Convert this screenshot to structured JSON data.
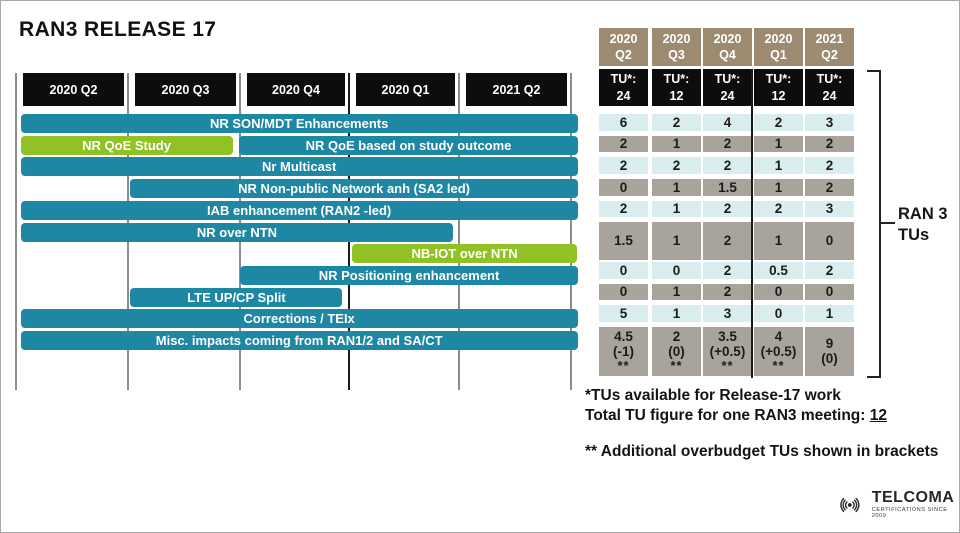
{
  "title": "RAN3 RELEASE 17",
  "colors": {
    "teal": "#1e87a3",
    "green": "#90c226",
    "header_black": "#0d0d0d",
    "tan": "#9c8b71",
    "row_light": "#d9edee",
    "row_gray": "#a8a49b",
    "grid_gray": "#8c8c8c",
    "divider_black": "#1a1a1a"
  },
  "gantt": {
    "quarters": [
      "2020 Q2",
      "2020 Q3",
      "2020 Q4",
      "2020 Q1",
      "2021 Q2"
    ],
    "bars": [
      {
        "lane": 0,
        "start": 0.05,
        "end": 5.07,
        "color": "teal",
        "label": "NR SON/MDT Enhancements"
      },
      {
        "lane": 1,
        "start": 0.05,
        "end": 1.96,
        "color": "green",
        "label": "NR QoE Study"
      },
      {
        "lane": 1,
        "start": 2.02,
        "end": 5.07,
        "color": "teal",
        "label": "NR QoE based on study outcome"
      },
      {
        "lane": 2,
        "start": 0.05,
        "end": 5.07,
        "color": "teal",
        "label": "Nr Multicast"
      },
      {
        "lane": 3,
        "start": 1.04,
        "end": 5.07,
        "color": "teal",
        "label": "NR Non-public Network anh (SA2 led)"
      },
      {
        "lane": 4,
        "start": 0.05,
        "end": 5.07,
        "color": "teal",
        "label": "IAB enhancement (RAN2 -led)"
      },
      {
        "lane": 5,
        "start": 0.05,
        "end": 3.95,
        "color": "teal",
        "label": "NR over NTN"
      },
      {
        "lane": 6,
        "start": 3.04,
        "end": 5.06,
        "color": "green",
        "label": "NB-IOT over NTN"
      },
      {
        "lane": 7,
        "start": 2.03,
        "end": 5.07,
        "color": "teal",
        "label": "NR Positioning enhancement"
      },
      {
        "lane": 8,
        "start": 1.04,
        "end": 2.95,
        "color": "teal",
        "label": "LTE UP/CP Split"
      },
      {
        "lane": 9,
        "start": 0.05,
        "end": 5.07,
        "color": "teal",
        "label": "Corrections / TEIx"
      },
      {
        "lane": 10,
        "start": 0.05,
        "end": 5.07,
        "color": "teal",
        "label": "Misc. impacts coming from RAN1/2 and SA/CT"
      }
    ]
  },
  "table": {
    "quarters": [
      "2020 Q2",
      "2020 Q3",
      "2020 Q4",
      "2020 Q1",
      "2021 Q2"
    ],
    "tu_label": "TU*:",
    "tu_values": [
      "24",
      "12",
      "24",
      "12",
      "24"
    ],
    "rows": [
      {
        "shade": "light",
        "size": "normal",
        "cells": [
          "6",
          "2",
          "4",
          "2",
          "3"
        ]
      },
      {
        "shade": "gray",
        "size": "normal",
        "cells": [
          "2",
          "1",
          "2",
          "1",
          "2"
        ]
      },
      {
        "shade": "light",
        "size": "normal",
        "cells": [
          "2",
          "2",
          "2",
          "1",
          "2"
        ]
      },
      {
        "shade": "gray",
        "size": "normal",
        "cells": [
          "0",
          "1",
          "1.5",
          "1",
          "2"
        ]
      },
      {
        "shade": "light",
        "size": "normal",
        "cells": [
          "2",
          "1",
          "2",
          "2",
          "3"
        ]
      },
      {
        "shade": "gray",
        "size": "double",
        "cells": [
          "1.5",
          "1",
          "2",
          "1",
          "0"
        ]
      },
      {
        "shade": "light",
        "size": "normal",
        "cells": [
          "0",
          "0",
          "2",
          "0.5",
          "2"
        ]
      },
      {
        "shade": "gray",
        "size": "normal",
        "cells": [
          "0",
          "1",
          "2",
          "0",
          "0"
        ]
      },
      {
        "shade": "light",
        "size": "normal",
        "cells": [
          "5",
          "1",
          "3",
          "0",
          "1"
        ]
      },
      {
        "shade": "gray",
        "size": "triple",
        "cells": [
          [
            "4.5",
            "(-1)",
            "**"
          ],
          [
            "2",
            "(0)",
            "**"
          ],
          [
            "3.5",
            "(+0.5)",
            "**"
          ],
          [
            "4",
            "(+0.5)",
            "**"
          ],
          [
            "9",
            "(0)"
          ]
        ]
      }
    ]
  },
  "bracket": {
    "label_line1": "RAN 3",
    "label_line2": "TUs"
  },
  "footnotes": {
    "line1": "*TUs available for Release-17 work",
    "line2_prefix": "Total TU figure for one RAN3 meeting: ",
    "line2_value": "12",
    "line3": "** Additional overbudget TUs shown in brackets"
  },
  "logo": {
    "name": "TELCOMA",
    "tagline": "CERTIFICATIONS SINCE 2009"
  }
}
